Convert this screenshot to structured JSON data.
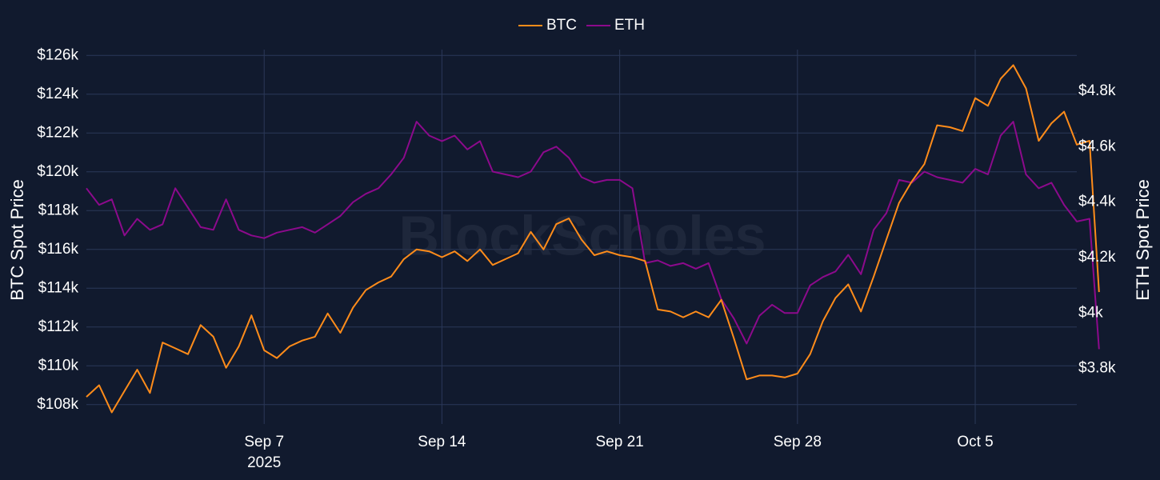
{
  "chart_data": {
    "type": "line",
    "watermark": "BlockScholes",
    "legend": {
      "placement": "top-center",
      "entries": [
        "BTC",
        "ETH"
      ]
    },
    "grid": true,
    "x_axis": {
      "type": "date",
      "range": [
        "2025-08-31",
        "2025-10-09"
      ],
      "ticks": [
        {
          "date": "2025-09-07",
          "label": "Sep 7",
          "sublabel": "2025"
        },
        {
          "date": "2025-09-14",
          "label": "Sep 14",
          "sublabel": ""
        },
        {
          "date": "2025-09-21",
          "label": "Sep 21",
          "sublabel": ""
        },
        {
          "date": "2025-09-28",
          "label": "Sep 28",
          "sublabel": ""
        },
        {
          "date": "2025-10-05",
          "label": "Oct 5",
          "sublabel": ""
        }
      ]
    },
    "y_left": {
      "label": "BTC Spot Price",
      "range": [
        107000,
        126300
      ],
      "ticks": [
        {
          "value": 108000,
          "label": "$108k"
        },
        {
          "value": 110000,
          "label": "$110k"
        },
        {
          "value": 112000,
          "label": "$112k"
        },
        {
          "value": 114000,
          "label": "$114k"
        },
        {
          "value": 116000,
          "label": "$116k"
        },
        {
          "value": 118000,
          "label": "$118k"
        },
        {
          "value": 120000,
          "label": "$120k"
        },
        {
          "value": 122000,
          "label": "$122k"
        },
        {
          "value": 124000,
          "label": "$124k"
        },
        {
          "value": 126000,
          "label": "$126k"
        }
      ]
    },
    "y_right": {
      "label": "ETH Spot Price",
      "range": [
        3600,
        4950
      ],
      "ticks": [
        {
          "value": 3800,
          "label": "$3.8k"
        },
        {
          "value": 4000,
          "label": "$4k"
        },
        {
          "value": 4200,
          "label": "$4.2k"
        },
        {
          "value": 4400,
          "label": "$4.4k"
        },
        {
          "value": 4600,
          "label": "$4.6k"
        },
        {
          "value": 4800,
          "label": "$4.8k"
        }
      ]
    },
    "series": [
      {
        "name": "BTC",
        "axis": "left",
        "color": "#ff8c1a",
        "points": [
          [
            "2025-08-31 00:00",
            108400
          ],
          [
            "2025-08-31 12:00",
            109000
          ],
          [
            "2025-09-01 00:00",
            107600
          ],
          [
            "2025-09-01 12:00",
            108700
          ],
          [
            "2025-09-02 00:00",
            109800
          ],
          [
            "2025-09-02 12:00",
            108600
          ],
          [
            "2025-09-03 00:00",
            111200
          ],
          [
            "2025-09-03 12:00",
            110900
          ],
          [
            "2025-09-04 00:00",
            110600
          ],
          [
            "2025-09-04 12:00",
            112100
          ],
          [
            "2025-09-05 00:00",
            111500
          ],
          [
            "2025-09-05 12:00",
            109900
          ],
          [
            "2025-09-06 00:00",
            111000
          ],
          [
            "2025-09-06 12:00",
            112600
          ],
          [
            "2025-09-07 00:00",
            110800
          ],
          [
            "2025-09-07 12:00",
            110400
          ],
          [
            "2025-09-08 00:00",
            111000
          ],
          [
            "2025-09-08 12:00",
            111300
          ],
          [
            "2025-09-09 00:00",
            111500
          ],
          [
            "2025-09-09 12:00",
            112700
          ],
          [
            "2025-09-10 00:00",
            111700
          ],
          [
            "2025-09-10 12:00",
            113000
          ],
          [
            "2025-09-11 00:00",
            113900
          ],
          [
            "2025-09-11 12:00",
            114300
          ],
          [
            "2025-09-12 00:00",
            114600
          ],
          [
            "2025-09-12 12:00",
            115500
          ],
          [
            "2025-09-13 00:00",
            116000
          ],
          [
            "2025-09-13 12:00",
            115900
          ],
          [
            "2025-09-14 00:00",
            115600
          ],
          [
            "2025-09-14 12:00",
            115900
          ],
          [
            "2025-09-15 00:00",
            115400
          ],
          [
            "2025-09-15 12:00",
            116000
          ],
          [
            "2025-09-16 00:00",
            115200
          ],
          [
            "2025-09-16 12:00",
            115500
          ],
          [
            "2025-09-17 00:00",
            115800
          ],
          [
            "2025-09-17 12:00",
            116900
          ],
          [
            "2025-09-18 00:00",
            116000
          ],
          [
            "2025-09-18 12:00",
            117300
          ],
          [
            "2025-09-19 00:00",
            117600
          ],
          [
            "2025-09-19 12:00",
            116500
          ],
          [
            "2025-09-20 00:00",
            115700
          ],
          [
            "2025-09-20 12:00",
            115900
          ],
          [
            "2025-09-21 00:00",
            115700
          ],
          [
            "2025-09-21 12:00",
            115600
          ],
          [
            "2025-09-22 00:00",
            115400
          ],
          [
            "2025-09-22 12:00",
            112900
          ],
          [
            "2025-09-23 00:00",
            112800
          ],
          [
            "2025-09-23 12:00",
            112500
          ],
          [
            "2025-09-24 00:00",
            112800
          ],
          [
            "2025-09-24 12:00",
            112500
          ],
          [
            "2025-09-25 00:00",
            113400
          ],
          [
            "2025-09-25 12:00",
            111400
          ],
          [
            "2025-09-26 00:00",
            109300
          ],
          [
            "2025-09-26 12:00",
            109500
          ],
          [
            "2025-09-27 00:00",
            109500
          ],
          [
            "2025-09-27 12:00",
            109400
          ],
          [
            "2025-09-28 00:00",
            109600
          ],
          [
            "2025-09-28 12:00",
            110600
          ],
          [
            "2025-09-29 00:00",
            112300
          ],
          [
            "2025-09-29 12:00",
            113500
          ],
          [
            "2025-09-30 00:00",
            114200
          ],
          [
            "2025-09-30 12:00",
            112800
          ],
          [
            "2025-10-01 00:00",
            114600
          ],
          [
            "2025-10-01 12:00",
            116500
          ],
          [
            "2025-10-02 00:00",
            118400
          ],
          [
            "2025-10-02 12:00",
            119500
          ],
          [
            "2025-10-03 00:00",
            120400
          ],
          [
            "2025-10-03 12:00",
            122400
          ],
          [
            "2025-10-04 00:00",
            122300
          ],
          [
            "2025-10-04 12:00",
            122100
          ],
          [
            "2025-10-05 00:00",
            123800
          ],
          [
            "2025-10-05 12:00",
            123400
          ],
          [
            "2025-10-06 00:00",
            124800
          ],
          [
            "2025-10-06 12:00",
            125500
          ],
          [
            "2025-10-07 00:00",
            124300
          ],
          [
            "2025-10-07 12:00",
            121600
          ],
          [
            "2025-10-08 00:00",
            122500
          ],
          [
            "2025-10-08 12:00",
            123100
          ],
          [
            "2025-10-09 00:00",
            121400
          ],
          [
            "2025-10-09 12:00",
            121600
          ],
          [
            "2025-10-09 21:00",
            113800
          ]
        ]
      },
      {
        "name": "ETH",
        "axis": "right",
        "color": "#8c0a8c",
        "points": [
          [
            "2025-08-31 00:00",
            4450
          ],
          [
            "2025-08-31 12:00",
            4390
          ],
          [
            "2025-09-01 00:00",
            4410
          ],
          [
            "2025-09-01 12:00",
            4280
          ],
          [
            "2025-09-02 00:00",
            4340
          ],
          [
            "2025-09-02 12:00",
            4300
          ],
          [
            "2025-09-03 00:00",
            4320
          ],
          [
            "2025-09-03 12:00",
            4450
          ],
          [
            "2025-09-04 00:00",
            4380
          ],
          [
            "2025-09-04 12:00",
            4310
          ],
          [
            "2025-09-05 00:00",
            4300
          ],
          [
            "2025-09-05 12:00",
            4410
          ],
          [
            "2025-09-06 00:00",
            4300
          ],
          [
            "2025-09-06 12:00",
            4280
          ],
          [
            "2025-09-07 00:00",
            4270
          ],
          [
            "2025-09-07 12:00",
            4290
          ],
          [
            "2025-09-08 00:00",
            4300
          ],
          [
            "2025-09-08 12:00",
            4310
          ],
          [
            "2025-09-09 00:00",
            4290
          ],
          [
            "2025-09-09 12:00",
            4320
          ],
          [
            "2025-09-10 00:00",
            4350
          ],
          [
            "2025-09-10 12:00",
            4400
          ],
          [
            "2025-09-11 00:00",
            4430
          ],
          [
            "2025-09-11 12:00",
            4450
          ],
          [
            "2025-09-12 00:00",
            4500
          ],
          [
            "2025-09-12 12:00",
            4560
          ],
          [
            "2025-09-13 00:00",
            4690
          ],
          [
            "2025-09-13 12:00",
            4640
          ],
          [
            "2025-09-14 00:00",
            4620
          ],
          [
            "2025-09-14 12:00",
            4640
          ],
          [
            "2025-09-15 00:00",
            4590
          ],
          [
            "2025-09-15 12:00",
            4620
          ],
          [
            "2025-09-16 00:00",
            4510
          ],
          [
            "2025-09-16 12:00",
            4500
          ],
          [
            "2025-09-17 00:00",
            4490
          ],
          [
            "2025-09-17 12:00",
            4510
          ],
          [
            "2025-09-18 00:00",
            4580
          ],
          [
            "2025-09-18 12:00",
            4600
          ],
          [
            "2025-09-19 00:00",
            4560
          ],
          [
            "2025-09-19 12:00",
            4490
          ],
          [
            "2025-09-20 00:00",
            4470
          ],
          [
            "2025-09-20 12:00",
            4480
          ],
          [
            "2025-09-21 00:00",
            4480
          ],
          [
            "2025-09-21 12:00",
            4450
          ],
          [
            "2025-09-22 00:00",
            4180
          ],
          [
            "2025-09-22 12:00",
            4190
          ],
          [
            "2025-09-23 00:00",
            4170
          ],
          [
            "2025-09-23 12:00",
            4180
          ],
          [
            "2025-09-24 00:00",
            4160
          ],
          [
            "2025-09-24 12:00",
            4180
          ],
          [
            "2025-09-25 00:00",
            4050
          ],
          [
            "2025-09-25 12:00",
            3980
          ],
          [
            "2025-09-26 00:00",
            3890
          ],
          [
            "2025-09-26 12:00",
            3990
          ],
          [
            "2025-09-27 00:00",
            4030
          ],
          [
            "2025-09-27 12:00",
            4000
          ],
          [
            "2025-09-28 00:00",
            4000
          ],
          [
            "2025-09-28 12:00",
            4100
          ],
          [
            "2025-09-29 00:00",
            4130
          ],
          [
            "2025-09-29 12:00",
            4150
          ],
          [
            "2025-09-30 00:00",
            4210
          ],
          [
            "2025-09-30 12:00",
            4140
          ],
          [
            "2025-10-01 00:00",
            4300
          ],
          [
            "2025-10-01 12:00",
            4360
          ],
          [
            "2025-10-02 00:00",
            4480
          ],
          [
            "2025-10-02 12:00",
            4470
          ],
          [
            "2025-10-03 00:00",
            4510
          ],
          [
            "2025-10-03 12:00",
            4490
          ],
          [
            "2025-10-04 00:00",
            4480
          ],
          [
            "2025-10-04 12:00",
            4470
          ],
          [
            "2025-10-05 00:00",
            4520
          ],
          [
            "2025-10-05 12:00",
            4500
          ],
          [
            "2025-10-06 00:00",
            4640
          ],
          [
            "2025-10-06 12:00",
            4690
          ],
          [
            "2025-10-07 00:00",
            4500
          ],
          [
            "2025-10-07 12:00",
            4450
          ],
          [
            "2025-10-08 00:00",
            4470
          ],
          [
            "2025-10-08 12:00",
            4390
          ],
          [
            "2025-10-09 00:00",
            4330
          ],
          [
            "2025-10-09 12:00",
            4340
          ],
          [
            "2025-10-09 21:00",
            3870
          ]
        ]
      }
    ]
  }
}
